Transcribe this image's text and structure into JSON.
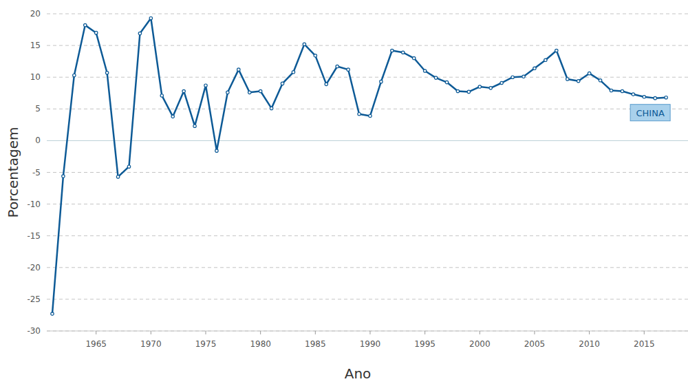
{
  "chart_data": {
    "type": "line",
    "x_label": "Ano",
    "y_label": "Porcentagem",
    "x": [
      1961,
      1962,
      1963,
      1964,
      1965,
      1966,
      1967,
      1968,
      1969,
      1970,
      1971,
      1972,
      1973,
      1974,
      1975,
      1976,
      1977,
      1978,
      1979,
      1980,
      1981,
      1982,
      1983,
      1984,
      1985,
      1986,
      1987,
      1988,
      1989,
      1990,
      1991,
      1992,
      1993,
      1994,
      1995,
      1996,
      1997,
      1998,
      1999,
      2000,
      2001,
      2002,
      2003,
      2004,
      2005,
      2006,
      2007,
      2008,
      2009,
      2010,
      2011,
      2012,
      2013,
      2014,
      2015,
      2016,
      2017
    ],
    "series": [
      {
        "name": "CHINA",
        "color": "#0d5a96",
        "marker": "circle",
        "values": [
          -27.3,
          -5.6,
          10.3,
          18.2,
          17.0,
          10.7,
          -5.7,
          -4.1,
          16.9,
          19.3,
          7.1,
          3.8,
          7.8,
          2.3,
          8.7,
          -1.6,
          7.6,
          11.2,
          7.6,
          7.8,
          5.1,
          9.0,
          10.8,
          15.2,
          13.4,
          8.9,
          11.7,
          11.2,
          4.2,
          3.9,
          9.3,
          14.2,
          13.9,
          13.0,
          11.0,
          9.9,
          9.2,
          7.8,
          7.7,
          8.5,
          8.3,
          9.1,
          10.0,
          10.1,
          11.4,
          12.7,
          14.2,
          9.7,
          9.4,
          10.6,
          9.5,
          7.9,
          7.8,
          7.3,
          6.9,
          6.7,
          6.8
        ]
      }
    ],
    "xlim": [
      1960.5,
      2019
    ],
    "ylim": [
      -30,
      20
    ],
    "xticks": [
      1965,
      1970,
      1975,
      1980,
      1985,
      1990,
      1995,
      2000,
      2005,
      2010,
      2015
    ],
    "yticks": [
      -30,
      -25,
      -20,
      -15,
      -10,
      -5,
      0,
      5,
      10,
      15,
      20
    ],
    "grid": true
  }
}
